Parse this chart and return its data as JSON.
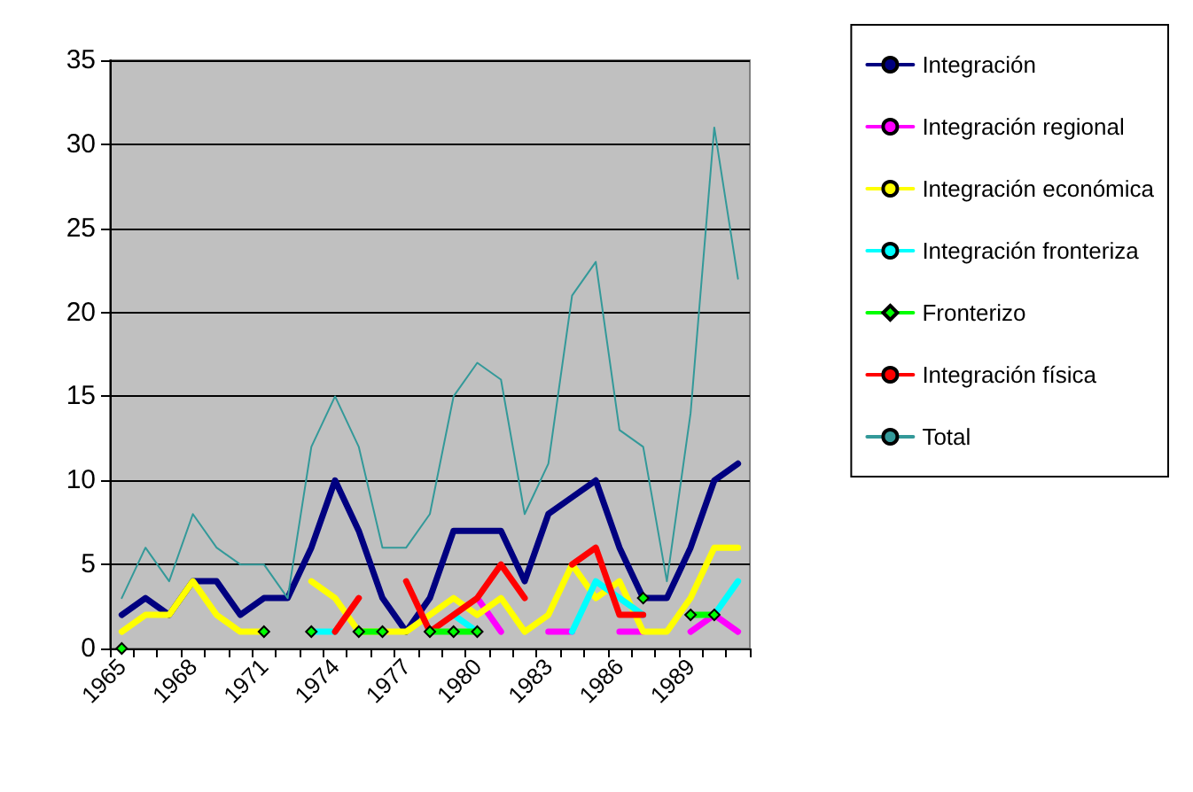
{
  "chart_data": {
    "type": "line",
    "categories": [
      "1965",
      null,
      null,
      "1968",
      null,
      null,
      "1971",
      null,
      null,
      "1974",
      null,
      null,
      "1977",
      null,
      null,
      "1980",
      null,
      null,
      "1983",
      null,
      null,
      "1986",
      null,
      null,
      "1989",
      null,
      null
    ],
    "series": [
      {
        "name": "Integración",
        "color": "#000080",
        "marker": "none",
        "values": [
          2,
          3,
          2,
          4,
          4,
          2,
          3,
          3,
          6,
          10,
          7,
          3,
          1,
          3,
          7,
          7,
          7,
          4,
          8,
          9,
          10,
          6,
          3,
          3,
          6,
          10,
          11
        ]
      },
      {
        "name": "Integración regional",
        "color": "#ff00ff",
        "marker": "none",
        "values": [
          null,
          null,
          null,
          null,
          null,
          null,
          null,
          null,
          null,
          null,
          null,
          null,
          null,
          null,
          null,
          3,
          1,
          null,
          1,
          1,
          null,
          1,
          1,
          null,
          1,
          2,
          1
        ]
      },
      {
        "name": "Integración económica",
        "color": "#ffff00",
        "marker": "none",
        "values": [
          1,
          2,
          2,
          4,
          2,
          1,
          1,
          null,
          4,
          3,
          1,
          1,
          1,
          2,
          3,
          2,
          3,
          1,
          2,
          5,
          3,
          4,
          1,
          1,
          3,
          6,
          6
        ]
      },
      {
        "name": "Integración fronteriza",
        "color": "#00ffff",
        "marker": "none",
        "values": [
          null,
          null,
          null,
          null,
          null,
          null,
          null,
          null,
          1,
          1,
          null,
          null,
          null,
          null,
          2,
          1,
          null,
          null,
          null,
          1,
          4,
          3,
          2,
          null,
          null,
          2,
          4
        ]
      },
      {
        "name": "Fronterizo",
        "color": "#00ff00",
        "marker": "diamond",
        "values": [
          0,
          null,
          null,
          null,
          null,
          null,
          1,
          null,
          1,
          null,
          1,
          1,
          null,
          1,
          1,
          1,
          null,
          null,
          null,
          null,
          null,
          null,
          3,
          null,
          2,
          2,
          null
        ]
      },
      {
        "name": "Integración física",
        "color": "#ff0000",
        "marker": "none",
        "values": [
          null,
          null,
          null,
          null,
          null,
          null,
          null,
          null,
          null,
          1,
          3,
          null,
          4,
          1,
          2,
          3,
          5,
          3,
          null,
          5,
          6,
          2,
          2,
          null,
          null,
          null,
          null
        ]
      },
      {
        "name": "Total",
        "color": "#339999",
        "marker": "none",
        "values": [
          3,
          6,
          4,
          8,
          6,
          5,
          5,
          3,
          12,
          15,
          12,
          6,
          6,
          8,
          15,
          17,
          16,
          8,
          11,
          21,
          23,
          13,
          12,
          4,
          14,
          31,
          22
        ]
      }
    ],
    "ylim": [
      0,
      35
    ],
    "yticks": [
      0,
      5,
      10,
      15,
      20,
      25,
      30,
      35
    ],
    "grid": "y",
    "legend": "right"
  }
}
